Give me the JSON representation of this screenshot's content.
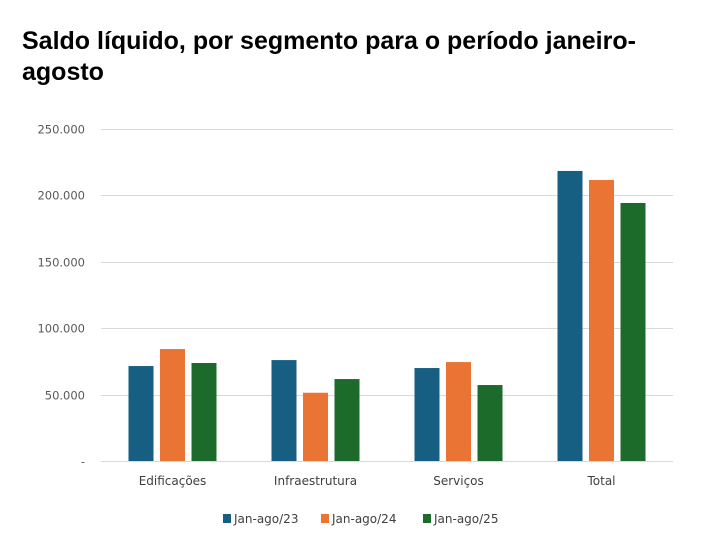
{
  "chart_data": {
    "type": "bar",
    "title": "Saldo líquido, por segmento para o período janeiro-agosto",
    "xlabel": "",
    "ylabel": "",
    "categories": [
      "Edificações",
      "Infraestrutura",
      "Serviços",
      "Total"
    ],
    "series": [
      {
        "name": "Jan-ago/23",
        "color": "#175F82",
        "values": [
          71500,
          76000,
          70000,
          218400
        ]
      },
      {
        "name": "Jan-ago/24",
        "color": "#EA7434",
        "values": [
          84300,
          51400,
          74500,
          211600
        ]
      },
      {
        "name": "Jan-ago/25",
        "color": "#1D6B2A",
        "values": [
          73800,
          61700,
          57200,
          194300
        ]
      }
    ],
    "ylim": [
      0,
      250000
    ],
    "yticks": [
      0,
      50000,
      100000,
      150000,
      200000,
      250000
    ],
    "ytick_labels": [
      "-",
      "50.000",
      "100.000",
      "150.000",
      "200.000",
      "250.000"
    ],
    "grid": true,
    "legend_position": "bottom"
  }
}
